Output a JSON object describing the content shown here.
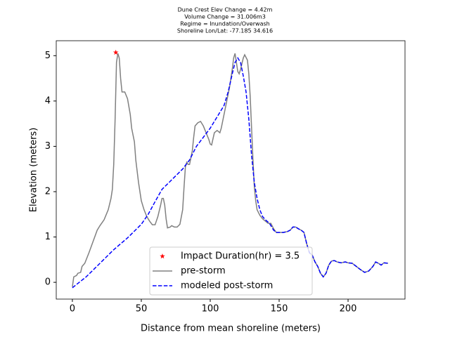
{
  "chart_data": {
    "type": "line",
    "title_lines": [
      "Dune Crest Elev Change = 4.42m",
      "Volume Change = 31.006m3",
      "Regime = Inundation/Overwash",
      "Shoreline Lon/Lat: -77.185 34.616"
    ],
    "x_label": "Distance from mean shoreline (meters)",
    "y_label": "Elevation (meters)",
    "xlim": [
      -11.7,
      241.3
    ],
    "ylim": [
      -0.37,
      5.33
    ],
    "xticks": [
      0,
      50,
      100,
      150,
      200
    ],
    "yticks": [
      0,
      1,
      2,
      3,
      4,
      5
    ],
    "legend": "lower center",
    "series": [
      {
        "name": "Impact Duration(hr) = 3.5",
        "kind": "scatter",
        "marker": "star",
        "color": "#ff0000",
        "x": [
          31.5
        ],
        "values": [
          5.07
        ]
      },
      {
        "name": "pre-storm",
        "kind": "line",
        "dash": "solid",
        "color": "#808080",
        "x": [
          0,
          1,
          3,
          4,
          6,
          7,
          9,
          12,
          15,
          18,
          20,
          23,
          26,
          28,
          29,
          30,
          31,
          32,
          33,
          34,
          35,
          36,
          38,
          40,
          42,
          43,
          45,
          46,
          48,
          50,
          52,
          54,
          56,
          58,
          60,
          62,
          64,
          65,
          66,
          67,
          68,
          69,
          71,
          72,
          74,
          76,
          78,
          80,
          81,
          82,
          83,
          84,
          85,
          87,
          88,
          89,
          91,
          93,
          95,
          97,
          99,
          100,
          101,
          103,
          105,
          107,
          108,
          110,
          112,
          114,
          116,
          117,
          118,
          119,
          120,
          121,
          122,
          124,
          125,
          127,
          128,
          129,
          130,
          131,
          132,
          133,
          134,
          136,
          138,
          140,
          142,
          144,
          146,
          148,
          150,
          153,
          156,
          158,
          160,
          162,
          164,
          166,
          168,
          170,
          172,
          174,
          176,
          178,
          180,
          182,
          184,
          186,
          188,
          190,
          192,
          195,
          198,
          200,
          203,
          206,
          209,
          212,
          215,
          218,
          220,
          222,
          224,
          226,
          229
        ],
        "values": [
          -0.1,
          0.12,
          0.15,
          0.2,
          0.22,
          0.35,
          0.42,
          0.65,
          0.9,
          1.15,
          1.25,
          1.38,
          1.6,
          1.85,
          2.05,
          2.6,
          3.6,
          4.85,
          5.05,
          4.95,
          4.5,
          4.2,
          4.2,
          4.05,
          3.7,
          3.4,
          3.1,
          2.7,
          2.2,
          1.8,
          1.6,
          1.45,
          1.35,
          1.27,
          1.27,
          1.45,
          1.7,
          1.85,
          1.85,
          1.7,
          1.4,
          1.2,
          1.22,
          1.25,
          1.22,
          1.22,
          1.28,
          1.6,
          2.1,
          2.55,
          2.65,
          2.6,
          2.6,
          2.9,
          3.2,
          3.45,
          3.52,
          3.55,
          3.45,
          3.3,
          3.15,
          3.05,
          3.03,
          3.3,
          3.35,
          3.3,
          3.4,
          3.7,
          4.0,
          4.3,
          4.7,
          4.95,
          5.05,
          4.85,
          4.65,
          4.6,
          4.7,
          4.95,
          5.02,
          4.9,
          4.6,
          4.1,
          3.4,
          2.7,
          2.1,
          1.8,
          1.6,
          1.48,
          1.4,
          1.35,
          1.3,
          1.3,
          1.18,
          1.1,
          1.1,
          1.1,
          1.12,
          1.15,
          1.22,
          1.22,
          1.18,
          1.15,
          1.1,
          0.85,
          0.65,
          0.6,
          0.45,
          0.35,
          0.2,
          0.12,
          0.2,
          0.38,
          0.47,
          0.48,
          0.45,
          0.43,
          0.45,
          0.43,
          0.42,
          0.35,
          0.28,
          0.22,
          0.25,
          0.35,
          0.45,
          0.42,
          0.38,
          0.43,
          0.42
        ]
      },
      {
        "name": "modeled post-storm",
        "kind": "line",
        "dash": "dashed",
        "color": "#0000ff",
        "x": [
          0,
          10,
          20,
          30,
          40,
          50,
          55,
          60,
          65,
          70,
          75,
          80,
          85,
          90,
          95,
          100,
          105,
          110,
          113,
          116,
          118,
          120,
          122,
          124,
          126,
          128,
          130,
          132,
          134,
          136,
          138,
          140,
          143,
          146,
          148,
          150,
          153,
          156,
          158,
          160,
          162,
          164,
          166,
          168,
          170,
          172,
          174,
          176,
          178,
          180,
          182,
          184,
          186,
          188,
          190,
          192,
          195,
          198,
          200,
          203,
          206,
          209,
          212,
          215,
          218,
          220,
          222,
          224,
          226,
          229
        ],
        "values": [
          -0.12,
          0.12,
          0.42,
          0.72,
          0.98,
          1.28,
          1.5,
          1.78,
          2.05,
          2.2,
          2.35,
          2.5,
          2.7,
          3.0,
          3.2,
          3.4,
          3.65,
          3.9,
          4.2,
          4.6,
          4.85,
          4.95,
          4.85,
          4.55,
          4.2,
          3.6,
          2.8,
          2.2,
          1.85,
          1.6,
          1.45,
          1.38,
          1.3,
          1.15,
          1.1,
          1.1,
          1.1,
          1.12,
          1.15,
          1.22,
          1.22,
          1.18,
          1.15,
          1.1,
          0.85,
          0.65,
          0.6,
          0.45,
          0.35,
          0.2,
          0.12,
          0.2,
          0.38,
          0.47,
          0.48,
          0.45,
          0.43,
          0.45,
          0.43,
          0.42,
          0.35,
          0.28,
          0.22,
          0.25,
          0.35,
          0.45,
          0.42,
          0.38,
          0.43,
          0.42
        ]
      }
    ]
  }
}
